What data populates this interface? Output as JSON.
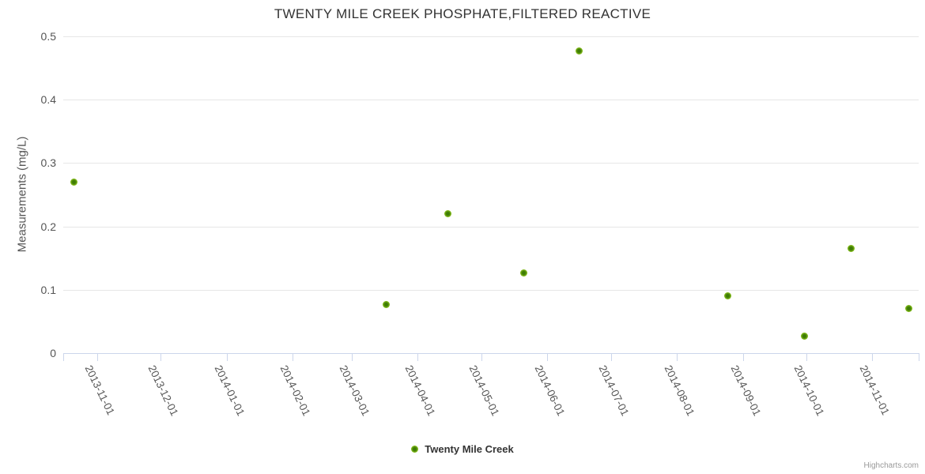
{
  "chart_data": {
    "type": "scatter",
    "title": "TWENTY MILE CREEK PHOSPHATE,FILTERED REACTIVE",
    "xlabel": "",
    "ylabel": "Measurements (mg/L)",
    "ylim": [
      0,
      0.5
    ],
    "y_ticks": [
      0,
      0.1,
      0.2,
      0.3,
      0.4,
      0.5
    ],
    "y_tick_labels": [
      "0",
      "0.1",
      "0.2",
      "0.3",
      "0.4",
      "0.5"
    ],
    "x_ticks": [
      "2013-11-01",
      "2013-12-01",
      "2014-01-01",
      "2014-02-01",
      "2014-03-01",
      "2014-04-01",
      "2014-05-01",
      "2014-06-01",
      "2014-07-01",
      "2014-08-01",
      "2014-09-01",
      "2014-10-01",
      "2014-11-01"
    ],
    "grid": "horizontal",
    "legend_position": "bottom-center",
    "series": [
      {
        "name": "Twenty Mile Creek",
        "points": [
          {
            "date": "2013-10-21",
            "value": 0.27
          },
          {
            "date": "2014-03-17",
            "value": 0.077
          },
          {
            "date": "2014-04-15",
            "value": 0.22
          },
          {
            "date": "2014-05-21",
            "value": 0.126
          },
          {
            "date": "2014-06-16",
            "value": 0.477
          },
          {
            "date": "2014-08-25",
            "value": 0.09
          },
          {
            "date": "2014-09-30",
            "value": 0.027
          },
          {
            "date": "2014-10-22",
            "value": 0.165
          },
          {
            "date": "2014-11-18",
            "value": 0.071
          }
        ]
      }
    ],
    "credits": "Highcharts.com"
  },
  "colors": {
    "marker_center": "#3e7c05",
    "marker_mid": "#8bc21e",
    "marker_edge": "#9bcb35",
    "grid_line": "#e6e6e6",
    "axis_line": "#ccd6eb",
    "tick_label": "#555555",
    "title_text": "#333333",
    "credits_text": "#999999"
  }
}
